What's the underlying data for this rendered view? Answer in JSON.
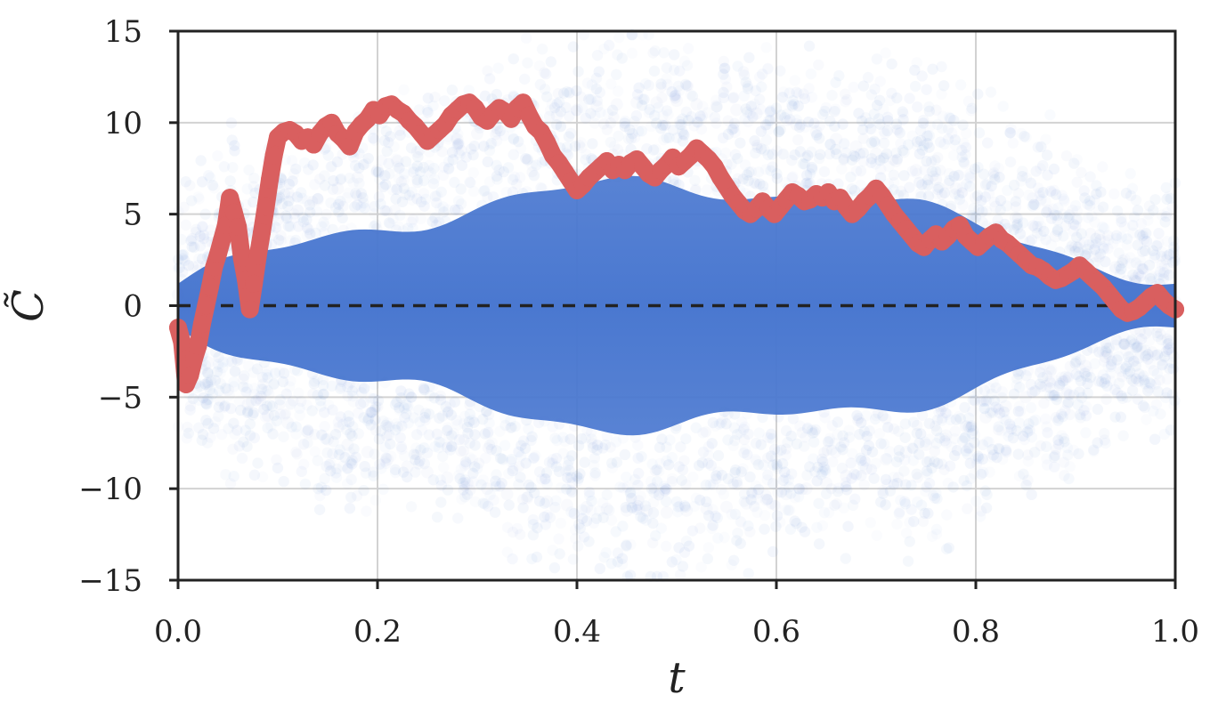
{
  "chart_data": {
    "type": "scatter",
    "title": "",
    "xlabel": "t",
    "ylabel": "C̃",
    "xlim": [
      0.0,
      1.0
    ],
    "ylim": [
      -15,
      15
    ],
    "xticks": [
      0.0,
      0.2,
      0.4,
      0.6,
      0.8,
      1.0
    ],
    "xtick_labels": [
      "0.0",
      "0.2",
      "0.4",
      "0.6",
      "0.8",
      "1.0"
    ],
    "yticks": [
      -15,
      -10,
      -5,
      0,
      5,
      10,
      15
    ],
    "ytick_labels": [
      "−15",
      "−10",
      "−5",
      "0",
      "5",
      "10",
      "15"
    ],
    "grid": true,
    "reference_line": {
      "y": 0,
      "style": "dashed",
      "color": "#222222"
    },
    "series": [
      {
        "type": "scatter-cloud",
        "color": "#4a78d0",
        "opacity": "low-alpha",
        "points": [
          [
            0.0,
            0.6
          ],
          [
            0.01,
            -1.8
          ],
          [
            0.02,
            1.9
          ],
          [
            0.03,
            -3.1
          ],
          [
            0.04,
            2.8
          ],
          [
            0.05,
            -4.6
          ],
          [
            0.06,
            3.5
          ],
          [
            0.07,
            -5.4
          ],
          [
            0.08,
            4.1
          ],
          [
            0.09,
            -6.0
          ],
          [
            0.1,
            4.7
          ],
          [
            0.11,
            -6.4
          ],
          [
            0.12,
            5.2
          ],
          [
            0.13,
            -6.9
          ],
          [
            0.14,
            5.8
          ],
          [
            0.15,
            -7.3
          ],
          [
            0.16,
            6.4
          ],
          [
            0.17,
            -7.6
          ],
          [
            0.18,
            7.0
          ],
          [
            0.19,
            -8.0
          ],
          [
            0.2,
            7.4
          ],
          [
            0.21,
            -8.4
          ],
          [
            0.22,
            7.9
          ],
          [
            0.23,
            -8.8
          ],
          [
            0.24,
            8.4
          ],
          [
            0.25,
            -9.1
          ],
          [
            0.26,
            8.8
          ],
          [
            0.27,
            -9.4
          ],
          [
            0.28,
            9.1
          ],
          [
            0.29,
            -9.7
          ],
          [
            0.3,
            9.4
          ],
          [
            0.31,
            -10.0
          ],
          [
            0.32,
            9.7
          ],
          [
            0.33,
            -10.3
          ],
          [
            0.34,
            10.0
          ],
          [
            0.35,
            -10.5
          ],
          [
            0.36,
            10.2
          ],
          [
            0.37,
            -10.7
          ],
          [
            0.38,
            10.4
          ],
          [
            0.39,
            -10.9
          ],
          [
            0.4,
            10.7
          ],
          [
            0.41,
            -11.0
          ],
          [
            0.42,
            10.9
          ],
          [
            0.43,
            -11.1
          ],
          [
            0.44,
            11.0
          ],
          [
            0.45,
            -11.2
          ],
          [
            0.46,
            11.1
          ],
          [
            0.47,
            -11.2
          ],
          [
            0.48,
            11.1
          ],
          [
            0.49,
            -11.3
          ],
          [
            0.5,
            11.2
          ],
          [
            0.51,
            -11.2
          ],
          [
            0.52,
            11.0
          ],
          [
            0.53,
            -11.1
          ],
          [
            0.54,
            10.9
          ],
          [
            0.55,
            -11.0
          ],
          [
            0.56,
            10.7
          ],
          [
            0.57,
            -10.8
          ],
          [
            0.58,
            10.5
          ],
          [
            0.59,
            -10.6
          ],
          [
            0.6,
            10.2
          ],
          [
            0.61,
            -10.3
          ],
          [
            0.62,
            9.9
          ],
          [
            0.63,
            -10.0
          ],
          [
            0.64,
            9.5
          ],
          [
            0.65,
            -9.7
          ],
          [
            0.66,
            9.1
          ],
          [
            0.67,
            -9.3
          ],
          [
            0.68,
            8.7
          ],
          [
            0.69,
            -8.9
          ],
          [
            0.7,
            8.3
          ],
          [
            0.71,
            -8.4
          ],
          [
            0.72,
            7.9
          ],
          [
            0.73,
            -8.0
          ],
          [
            0.74,
            7.4
          ],
          [
            0.75,
            -7.6
          ],
          [
            0.76,
            6.9
          ],
          [
            0.77,
            -7.1
          ],
          [
            0.78,
            6.4
          ],
          [
            0.79,
            -6.6
          ],
          [
            0.8,
            5.9
          ],
          [
            0.81,
            -6.1
          ],
          [
            0.82,
            5.4
          ],
          [
            0.83,
            -5.5
          ],
          [
            0.84,
            4.8
          ],
          [
            0.85,
            -5.0
          ],
          [
            0.86,
            4.3
          ],
          [
            0.87,
            -4.4
          ],
          [
            0.88,
            3.8
          ],
          [
            0.89,
            -3.9
          ],
          [
            0.9,
            3.2
          ],
          [
            0.91,
            -3.3
          ],
          [
            0.92,
            2.7
          ],
          [
            0.93,
            -2.8
          ],
          [
            0.94,
            2.1
          ],
          [
            0.95,
            -2.1
          ],
          [
            0.96,
            1.5
          ],
          [
            0.97,
            -1.5
          ],
          [
            0.98,
            1.0
          ],
          [
            0.99,
            -0.9
          ],
          [
            1.0,
            0.2
          ]
        ]
      },
      {
        "type": "line-scatter",
        "color": "#d95f5f",
        "points": [
          [
            0.0,
            -1.2
          ],
          [
            0.004,
            -2.0
          ],
          [
            0.008,
            -4.3
          ],
          [
            0.012,
            -3.8
          ],
          [
            0.016,
            -2.9
          ],
          [
            0.02,
            -2.2
          ],
          [
            0.024,
            -1.0
          ],
          [
            0.028,
            0.0
          ],
          [
            0.032,
            1.0
          ],
          [
            0.036,
            2.1
          ],
          [
            0.04,
            2.8
          ],
          [
            0.044,
            3.6
          ],
          [
            0.048,
            4.4
          ],
          [
            0.052,
            5.9
          ],
          [
            0.056,
            5.1
          ],
          [
            0.06,
            4.3
          ],
          [
            0.064,
            2.6
          ],
          [
            0.068,
            1.4
          ],
          [
            0.072,
            -0.2
          ],
          [
            0.076,
            1.2
          ],
          [
            0.08,
            2.7
          ],
          [
            0.084,
            4.0
          ],
          [
            0.088,
            5.4
          ],
          [
            0.092,
            6.9
          ],
          [
            0.096,
            8.2
          ],
          [
            0.1,
            9.2
          ],
          [
            0.106,
            9.5
          ],
          [
            0.112,
            9.6
          ],
          [
            0.118,
            9.4
          ],
          [
            0.124,
            9.0
          ],
          [
            0.13,
            9.2
          ],
          [
            0.136,
            8.8
          ],
          [
            0.142,
            9.4
          ],
          [
            0.148,
            9.8
          ],
          [
            0.154,
            10.0
          ],
          [
            0.16,
            9.4
          ],
          [
            0.166,
            9.1
          ],
          [
            0.172,
            8.7
          ],
          [
            0.178,
            9.5
          ],
          [
            0.184,
            9.9
          ],
          [
            0.19,
            10.2
          ],
          [
            0.196,
            10.7
          ],
          [
            0.202,
            10.4
          ],
          [
            0.208,
            10.9
          ],
          [
            0.214,
            11.0
          ],
          [
            0.22,
            10.7
          ],
          [
            0.226,
            10.5
          ],
          [
            0.232,
            10.1
          ],
          [
            0.238,
            9.8
          ],
          [
            0.244,
            9.4
          ],
          [
            0.25,
            9.0
          ],
          [
            0.256,
            9.3
          ],
          [
            0.262,
            9.6
          ],
          [
            0.268,
            9.9
          ],
          [
            0.274,
            10.4
          ],
          [
            0.28,
            10.7
          ],
          [
            0.286,
            11.0
          ],
          [
            0.292,
            11.1
          ],
          [
            0.298,
            10.8
          ],
          [
            0.304,
            10.3
          ],
          [
            0.31,
            10.1
          ],
          [
            0.316,
            10.5
          ],
          [
            0.322,
            10.8
          ],
          [
            0.328,
            10.6
          ],
          [
            0.334,
            10.2
          ],
          [
            0.34,
            10.8
          ],
          [
            0.346,
            11.1
          ],
          [
            0.352,
            10.4
          ],
          [
            0.358,
            9.8
          ],
          [
            0.364,
            9.5
          ],
          [
            0.37,
            8.9
          ],
          [
            0.376,
            8.2
          ],
          [
            0.382,
            7.8
          ],
          [
            0.388,
            7.3
          ],
          [
            0.394,
            6.8
          ],
          [
            0.4,
            6.3
          ],
          [
            0.406,
            6.6
          ],
          [
            0.412,
            7.0
          ],
          [
            0.418,
            7.3
          ],
          [
            0.424,
            7.6
          ],
          [
            0.43,
            7.9
          ],
          [
            0.436,
            7.4
          ],
          [
            0.442,
            7.7
          ],
          [
            0.448,
            7.4
          ],
          [
            0.454,
            7.8
          ],
          [
            0.46,
            8.0
          ],
          [
            0.466,
            7.6
          ],
          [
            0.472,
            7.2
          ],
          [
            0.478,
            7.0
          ],
          [
            0.484,
            7.4
          ],
          [
            0.49,
            7.7
          ],
          [
            0.496,
            8.1
          ],
          [
            0.502,
            7.6
          ],
          [
            0.508,
            7.9
          ],
          [
            0.514,
            8.2
          ],
          [
            0.52,
            8.6
          ],
          [
            0.526,
            8.3
          ],
          [
            0.532,
            8.0
          ],
          [
            0.538,
            7.6
          ],
          [
            0.544,
            7.0
          ],
          [
            0.55,
            6.5
          ],
          [
            0.556,
            6.0
          ],
          [
            0.562,
            5.6
          ],
          [
            0.568,
            5.2
          ],
          [
            0.574,
            5.0
          ],
          [
            0.58,
            5.3
          ],
          [
            0.586,
            5.7
          ],
          [
            0.592,
            5.3
          ],
          [
            0.598,
            5.0
          ],
          [
            0.604,
            5.4
          ],
          [
            0.61,
            5.8
          ],
          [
            0.616,
            6.2
          ],
          [
            0.622,
            6.0
          ],
          [
            0.628,
            5.7
          ],
          [
            0.634,
            5.8
          ],
          [
            0.64,
            6.1
          ],
          [
            0.646,
            5.9
          ],
          [
            0.652,
            6.2
          ],
          [
            0.658,
            5.7
          ],
          [
            0.664,
            5.9
          ],
          [
            0.67,
            5.4
          ],
          [
            0.676,
            5.0
          ],
          [
            0.682,
            5.3
          ],
          [
            0.688,
            5.7
          ],
          [
            0.694,
            6.0
          ],
          [
            0.7,
            6.4
          ],
          [
            0.706,
            6.0
          ],
          [
            0.712,
            5.5
          ],
          [
            0.718,
            5.0
          ],
          [
            0.724,
            4.6
          ],
          [
            0.73,
            4.2
          ],
          [
            0.736,
            3.8
          ],
          [
            0.742,
            3.4
          ],
          [
            0.748,
            3.2
          ],
          [
            0.754,
            3.6
          ],
          [
            0.76,
            3.9
          ],
          [
            0.766,
            3.5
          ],
          [
            0.772,
            3.8
          ],
          [
            0.778,
            4.2
          ],
          [
            0.784,
            4.4
          ],
          [
            0.79,
            3.8
          ],
          [
            0.796,
            3.5
          ],
          [
            0.802,
            3.2
          ],
          [
            0.808,
            3.5
          ],
          [
            0.814,
            3.8
          ],
          [
            0.82,
            4.0
          ],
          [
            0.826,
            3.6
          ],
          [
            0.832,
            3.4
          ],
          [
            0.838,
            3.1
          ],
          [
            0.844,
            2.8
          ],
          [
            0.85,
            2.5
          ],
          [
            0.856,
            2.2
          ],
          [
            0.862,
            2.1
          ],
          [
            0.868,
            1.9
          ],
          [
            0.874,
            1.6
          ],
          [
            0.88,
            1.4
          ],
          [
            0.886,
            1.5
          ],
          [
            0.892,
            1.7
          ],
          [
            0.898,
            1.9
          ],
          [
            0.904,
            2.2
          ],
          [
            0.91,
            1.9
          ],
          [
            0.916,
            1.6
          ],
          [
            0.922,
            1.3
          ],
          [
            0.928,
            1.0
          ],
          [
            0.934,
            0.6
          ],
          [
            0.94,
            0.2
          ],
          [
            0.946,
            -0.2
          ],
          [
            0.952,
            -0.4
          ],
          [
            0.958,
            -0.3
          ],
          [
            0.964,
            -0.1
          ],
          [
            0.97,
            0.2
          ],
          [
            0.976,
            0.5
          ],
          [
            0.982,
            0.7
          ],
          [
            0.988,
            0.3
          ],
          [
            0.994,
            0.0
          ],
          [
            1.0,
            -0.2
          ]
        ]
      }
    ]
  },
  "colors": {
    "axes": "#222222",
    "grid": "#d2d2d2",
    "cloud": "#4a78d0",
    "path": "#d95f5f",
    "background": "#ffffff"
  }
}
